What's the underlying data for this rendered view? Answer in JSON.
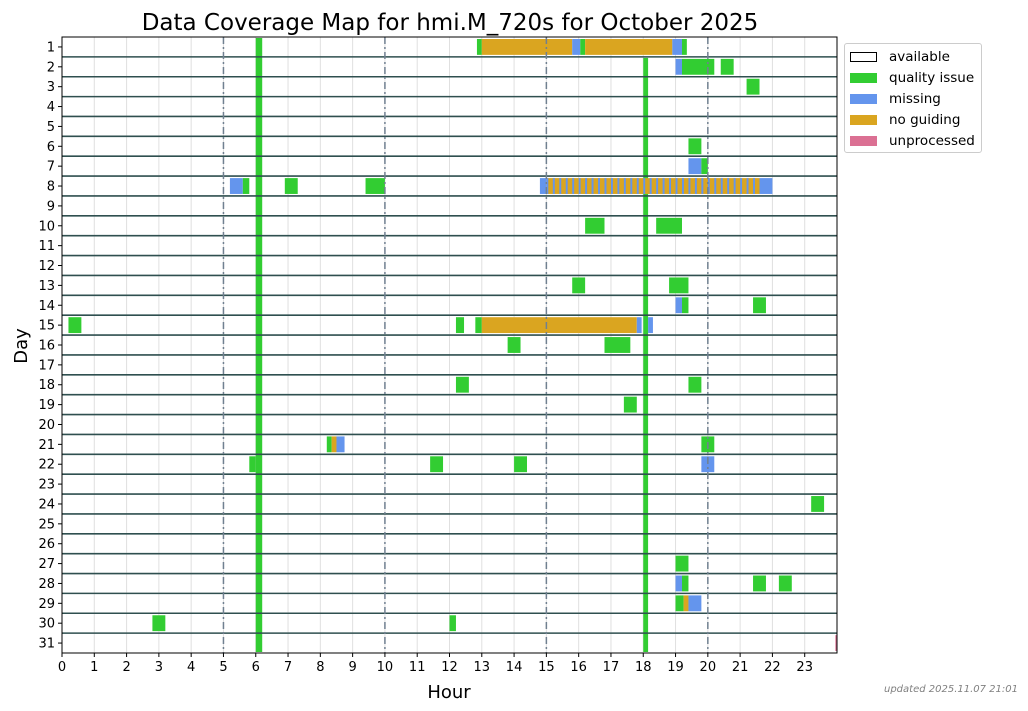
{
  "chart_data": {
    "type": "heatmap",
    "title": "Data Coverage Map for hmi.M_720s for October 2025",
    "xlabel": "Hour",
    "ylabel": "Day",
    "xlim": [
      0,
      24
    ],
    "x_ticks": [
      "0",
      "1",
      "2",
      "3",
      "4",
      "5",
      "6",
      "7",
      "8",
      "9",
      "10",
      "11",
      "12",
      "13",
      "14",
      "15",
      "16",
      "17",
      "18",
      "19",
      "20",
      "21",
      "22",
      "23"
    ],
    "y_ticks": [
      "1",
      "2",
      "3",
      "4",
      "5",
      "6",
      "7",
      "8",
      "9",
      "10",
      "11",
      "12",
      "13",
      "14",
      "15",
      "16",
      "17",
      "18",
      "19",
      "20",
      "21",
      "22",
      "23",
      "24",
      "25",
      "26",
      "27",
      "28",
      "29",
      "30",
      "31"
    ],
    "vertical_reference_hours": [
      5,
      10,
      15,
      20
    ],
    "legend_placement": "outside-right",
    "legend": [
      {
        "key": "available",
        "label": "available",
        "color": "#ffffff"
      },
      {
        "key": "quality",
        "label": "quality issue",
        "color": "#32cd32"
      },
      {
        "key": "missing",
        "label": "missing",
        "color": "#6495ed"
      },
      {
        "key": "noguide",
        "label": "no guiding",
        "color": "#daa520"
      },
      {
        "key": "unprocessed",
        "label": "unprocessed",
        "color": "#db7093"
      }
    ],
    "all_day_quality_columns": [
      {
        "start": 6.0,
        "end": 6.2,
        "days": [
          1,
          31
        ]
      },
      {
        "start": 18.0,
        "end": 18.15,
        "days": [
          2,
          31
        ]
      }
    ],
    "segments": [
      {
        "day": 1,
        "start": 12.85,
        "end": 13.0,
        "status": "quality"
      },
      {
        "day": 1,
        "start": 13.0,
        "end": 15.8,
        "status": "noguide"
      },
      {
        "day": 1,
        "start": 15.8,
        "end": 16.05,
        "status": "missing"
      },
      {
        "day": 1,
        "start": 16.05,
        "end": 16.2,
        "status": "quality"
      },
      {
        "day": 1,
        "start": 16.2,
        "end": 18.9,
        "status": "noguide"
      },
      {
        "day": 1,
        "start": 18.9,
        "end": 19.2,
        "status": "missing"
      },
      {
        "day": 1,
        "start": 19.2,
        "end": 19.35,
        "status": "quality"
      },
      {
        "day": 2,
        "start": 19.0,
        "end": 19.2,
        "status": "missing"
      },
      {
        "day": 2,
        "start": 19.2,
        "end": 20.2,
        "status": "quality"
      },
      {
        "day": 2,
        "start": 20.4,
        "end": 20.8,
        "status": "quality"
      },
      {
        "day": 3,
        "start": 21.2,
        "end": 21.6,
        "status": "quality"
      },
      {
        "day": 6,
        "start": 19.4,
        "end": 19.8,
        "status": "quality"
      },
      {
        "day": 7,
        "start": 19.4,
        "end": 19.8,
        "status": "missing"
      },
      {
        "day": 7,
        "start": 19.8,
        "end": 20.0,
        "status": "quality"
      },
      {
        "day": 8,
        "start": 5.2,
        "end": 5.6,
        "status": "missing"
      },
      {
        "day": 8,
        "start": 5.6,
        "end": 5.8,
        "status": "quality"
      },
      {
        "day": 8,
        "start": 6.9,
        "end": 7.3,
        "status": "quality"
      },
      {
        "day": 8,
        "start": 9.4,
        "end": 10.0,
        "status": "quality"
      },
      {
        "day": 8,
        "start": 14.8,
        "end": 15.0,
        "status": "missing"
      },
      {
        "day": 8,
        "start": 15.0,
        "end": 21.6,
        "status": "noguide",
        "striped_with": "missing"
      },
      {
        "day": 8,
        "start": 21.6,
        "end": 22.0,
        "status": "missing"
      },
      {
        "day": 10,
        "start": 16.2,
        "end": 16.8,
        "status": "quality"
      },
      {
        "day": 10,
        "start": 18.4,
        "end": 19.2,
        "status": "quality"
      },
      {
        "day": 13,
        "start": 15.8,
        "end": 16.2,
        "status": "quality"
      },
      {
        "day": 13,
        "start": 18.8,
        "end": 19.4,
        "status": "quality"
      },
      {
        "day": 14,
        "start": 19.0,
        "end": 19.2,
        "status": "missing"
      },
      {
        "day": 14,
        "start": 19.2,
        "end": 19.4,
        "status": "quality"
      },
      {
        "day": 14,
        "start": 21.4,
        "end": 21.8,
        "status": "quality"
      },
      {
        "day": 15,
        "start": 0.2,
        "end": 0.6,
        "status": "quality"
      },
      {
        "day": 15,
        "start": 12.2,
        "end": 12.45,
        "status": "quality"
      },
      {
        "day": 15,
        "start": 12.8,
        "end": 13.0,
        "status": "quality"
      },
      {
        "day": 15,
        "start": 13.0,
        "end": 17.8,
        "status": "noguide"
      },
      {
        "day": 15,
        "start": 17.8,
        "end": 17.95,
        "status": "missing"
      },
      {
        "day": 15,
        "start": 18.15,
        "end": 18.3,
        "status": "missing"
      },
      {
        "day": 16,
        "start": 13.8,
        "end": 14.2,
        "status": "quality"
      },
      {
        "day": 16,
        "start": 16.8,
        "end": 17.6,
        "status": "quality"
      },
      {
        "day": 18,
        "start": 12.2,
        "end": 12.6,
        "status": "quality"
      },
      {
        "day": 18,
        "start": 19.4,
        "end": 19.8,
        "status": "quality"
      },
      {
        "day": 19,
        "start": 17.4,
        "end": 17.8,
        "status": "quality"
      },
      {
        "day": 21,
        "start": 8.2,
        "end": 8.35,
        "status": "quality"
      },
      {
        "day": 21,
        "start": 8.35,
        "end": 8.5,
        "status": "noguide"
      },
      {
        "day": 21,
        "start": 8.5,
        "end": 8.75,
        "status": "missing"
      },
      {
        "day": 21,
        "start": 19.8,
        "end": 20.2,
        "status": "quality"
      },
      {
        "day": 22,
        "start": 5.8,
        "end": 6.0,
        "status": "quality"
      },
      {
        "day": 22,
        "start": 11.4,
        "end": 11.8,
        "status": "quality"
      },
      {
        "day": 22,
        "start": 14.0,
        "end": 14.4,
        "status": "quality"
      },
      {
        "day": 22,
        "start": 19.8,
        "end": 20.2,
        "status": "missing"
      },
      {
        "day": 24,
        "start": 23.2,
        "end": 23.6,
        "status": "quality"
      },
      {
        "day": 27,
        "start": 19.0,
        "end": 19.4,
        "status": "quality"
      },
      {
        "day": 28,
        "start": 19.0,
        "end": 19.2,
        "status": "missing"
      },
      {
        "day": 28,
        "start": 19.2,
        "end": 19.4,
        "status": "quality"
      },
      {
        "day": 28,
        "start": 21.4,
        "end": 21.8,
        "status": "quality"
      },
      {
        "day": 28,
        "start": 22.2,
        "end": 22.6,
        "status": "quality"
      },
      {
        "day": 29,
        "start": 19.0,
        "end": 19.25,
        "status": "quality"
      },
      {
        "day": 29,
        "start": 19.25,
        "end": 19.4,
        "status": "noguide"
      },
      {
        "day": 29,
        "start": 19.4,
        "end": 19.8,
        "status": "missing"
      },
      {
        "day": 30,
        "start": 2.8,
        "end": 3.2,
        "status": "quality"
      },
      {
        "day": 30,
        "start": 12.0,
        "end": 12.2,
        "status": "quality"
      },
      {
        "day": 31,
        "start": 23.95,
        "end": 24.0,
        "status": "unprocessed"
      }
    ]
  },
  "footnote": "updated 2025.11.07 21:01"
}
